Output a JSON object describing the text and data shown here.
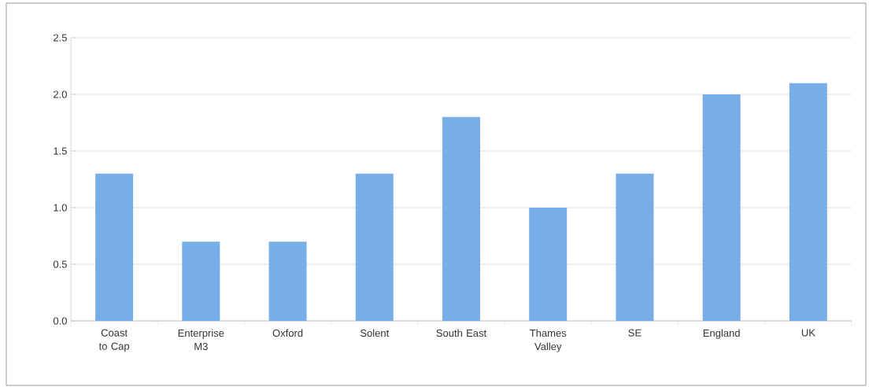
{
  "chart_data": {
    "type": "bar",
    "categories": [
      "Coast to Cap",
      "Enterprise M3",
      "Oxford",
      "Solent",
      "South East",
      "Thames Valley",
      "SE",
      "England",
      "UK"
    ],
    "values": [
      1.3,
      0.7,
      0.7,
      1.3,
      1.8,
      1.0,
      1.3,
      2.0,
      2.1
    ],
    "color": "#78aee8",
    "ylim": [
      0,
      2.5
    ],
    "yticks": [
      {
        "value": 0,
        "label": "0.0"
      },
      {
        "value": 0.5,
        "label": "0.5"
      },
      {
        "value": 1,
        "label": "1.0"
      },
      {
        "value": 1.5,
        "label": "1.5"
      },
      {
        "value": 2,
        "label": "2.0"
      },
      {
        "value": 2.5,
        "label": "2.5"
      }
    ],
    "grid": "y"
  }
}
